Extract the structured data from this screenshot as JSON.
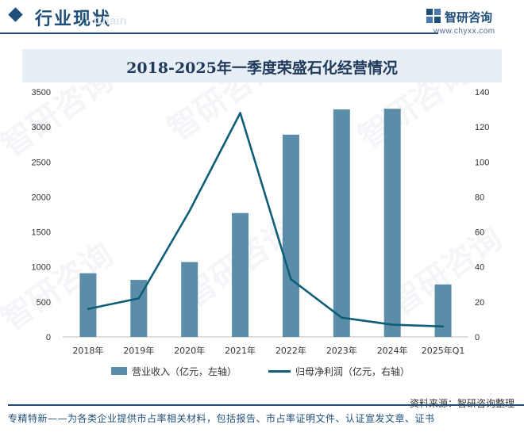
{
  "header": {
    "section_title": "行业现状",
    "section_subtitle": "Chain",
    "logo_name": "智研咨询",
    "logo_url": "www.chyxx.com"
  },
  "watermark": "智研咨询",
  "chart_data": {
    "type": "bar",
    "title": "2018-2025年一季度荣盛石化经营情况",
    "categories": [
      "2018年",
      "2019年",
      "2020年",
      "2021年",
      "2022年",
      "2023年",
      "2024年",
      "2025年Q1"
    ],
    "series": [
      {
        "name": "营业收入（亿元，左轴）",
        "type": "bar",
        "axis": "left",
        "color": "#5b8da8",
        "values": [
          910,
          815,
          1070,
          1770,
          2890,
          3250,
          3260,
          750
        ]
      },
      {
        "name": "归母净利润（亿元，右轴）",
        "type": "line",
        "axis": "right",
        "color": "#0f5e78",
        "values": [
          16,
          22,
          72,
          128,
          33,
          11,
          7,
          6
        ]
      }
    ],
    "y_left": {
      "min": 0,
      "max": 3500,
      "ticks": [
        0,
        500,
        1000,
        1500,
        2000,
        2500,
        3000,
        3500
      ]
    },
    "y_right": {
      "min": 0,
      "max": 140,
      "ticks": [
        0,
        20,
        40,
        60,
        80,
        100,
        120,
        140
      ]
    },
    "grid": false,
    "legend_position": "bottom"
  },
  "source": "资料来源：智研咨询整理",
  "footer": "专精特新——为各类企业提供市占率相关材料，包括报告、市占率证明文件、认证宣发文章、证书"
}
